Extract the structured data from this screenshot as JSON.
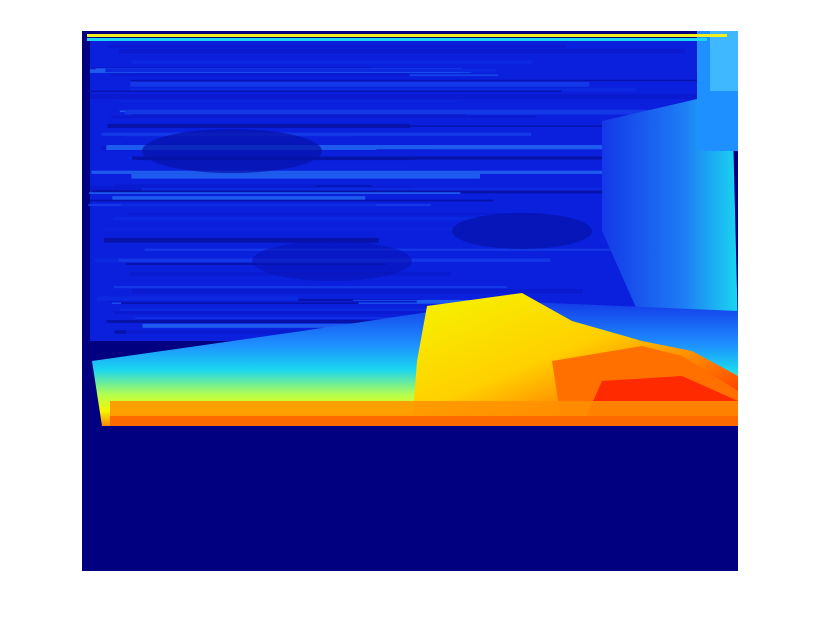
{
  "figure": {
    "background": "#ffffff",
    "colormap": "jet",
    "colormap_stops": [
      "#000080",
      "#0000ff",
      "#0080ff",
      "#00ffff",
      "#80ff80",
      "#ffff00",
      "#ff8000",
      "#ff0000"
    ]
  },
  "image": {
    "description_kind": "depth-map heatmap",
    "colors": {
      "dark_navy": "#000080",
      "deep_blue": "#0a1ad0",
      "mid_blue": "#1438e8",
      "light_blue": "#1e90ff",
      "cyan": "#1ad6f0",
      "yellow": "#f5f500",
      "orange": "#ff7a00",
      "red": "#ff1400"
    }
  }
}
